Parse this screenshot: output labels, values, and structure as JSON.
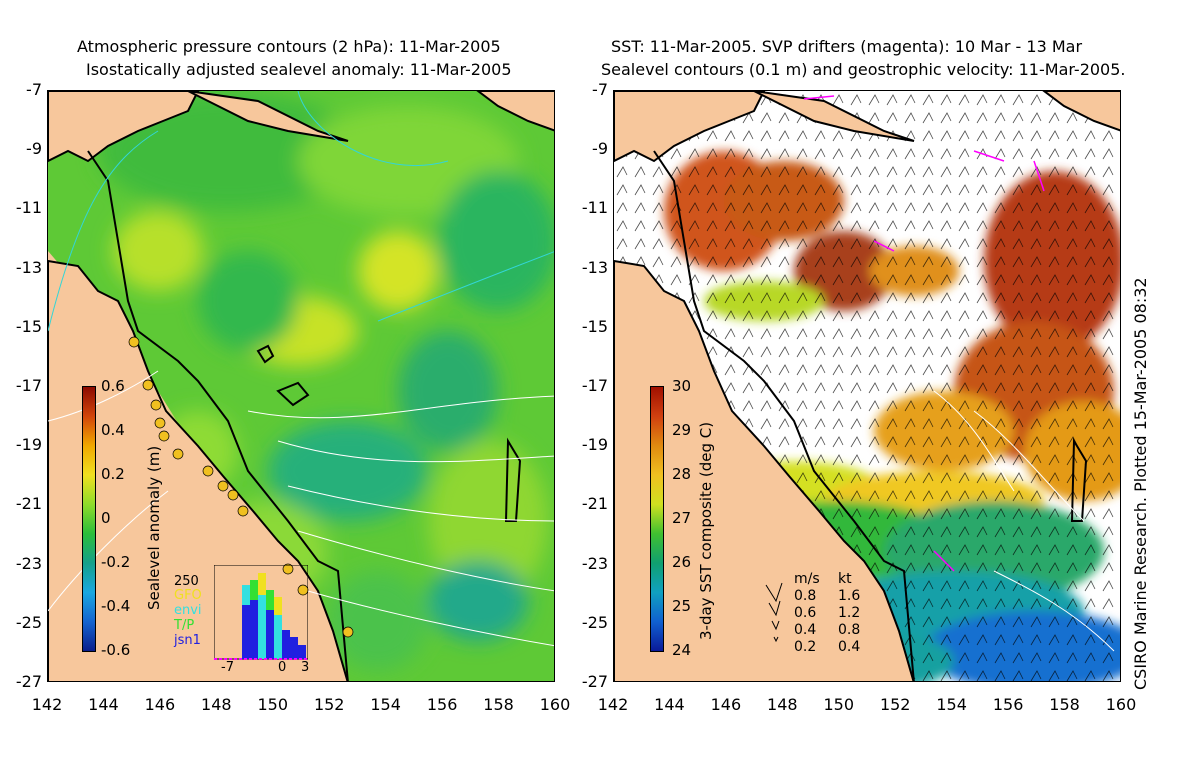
{
  "left_panel": {
    "title_line1": "Atmospheric pressure contours (2 hPa): 11-Mar-2005",
    "title_line2": "Isostatically adjusted sealevel anomaly: 11-Mar-2005",
    "colorbar": {
      "label": "Sealevel anomaly (m)",
      "ticks": [
        "0.6",
        "0.4",
        "0.2",
        "0",
        "-0.2",
        "-0.4",
        "-0.6"
      ],
      "colors": [
        "#8b0a00",
        "#d2450a",
        "#f0a800",
        "#f0e020",
        "#8fdc2a",
        "#2bbe3a",
        "#15a08a",
        "#1aa8e0",
        "#1464d0",
        "#0a1e8c"
      ]
    },
    "histogram": {
      "max_label": "250",
      "series": [
        {
          "name": "GFO",
          "color": "#f0e020"
        },
        {
          "name": "envi",
          "color": "#33e0e0"
        },
        {
          "name": "T/P",
          "color": "#33e033"
        },
        {
          "name": "jsn1",
          "color": "#2020e0"
        }
      ],
      "x_ticks": [
        "-7",
        "0",
        "3"
      ]
    }
  },
  "right_panel": {
    "title_line1": "SST: 11-Mar-2005. SVP drifters (magenta): 10 Mar - 13 Mar",
    "title_line2": "Sealevel contours (0.1 m) and geostrophic velocity: 11-Mar-2005.",
    "colorbar": {
      "label": "3-day SST composite (deg C)",
      "ticks": [
        "30",
        "29",
        "28",
        "27",
        "26",
        "25",
        "24"
      ],
      "colors": [
        "#a01000",
        "#d04010",
        "#e08a10",
        "#f0c020",
        "#d0e020",
        "#40c030",
        "#10a070",
        "#10a0c0",
        "#1060d0",
        "#0a1a9a"
      ]
    },
    "velocity_key": {
      "header": [
        "m/s",
        "kt"
      ],
      "rows": [
        [
          "0.8",
          "1.6"
        ],
        [
          "0.6",
          "1.2"
        ],
        [
          "0.4",
          "0.8"
        ],
        [
          "0.2",
          "0.4"
        ]
      ]
    }
  },
  "y_ticks": [
    "-7",
    "-9",
    "-11",
    "-13",
    "-15",
    "-17",
    "-19",
    "-21",
    "-23",
    "-25",
    "-27"
  ],
  "x_ticks": [
    "142",
    "144",
    "146",
    "148",
    "150",
    "152",
    "154",
    "156",
    "158",
    "160"
  ],
  "credit": "CSIRO Marine Research. Plotted 15-Mar-2005 08:32",
  "map_colors": {
    "land": "#f7c79c",
    "coast": "#000000"
  }
}
